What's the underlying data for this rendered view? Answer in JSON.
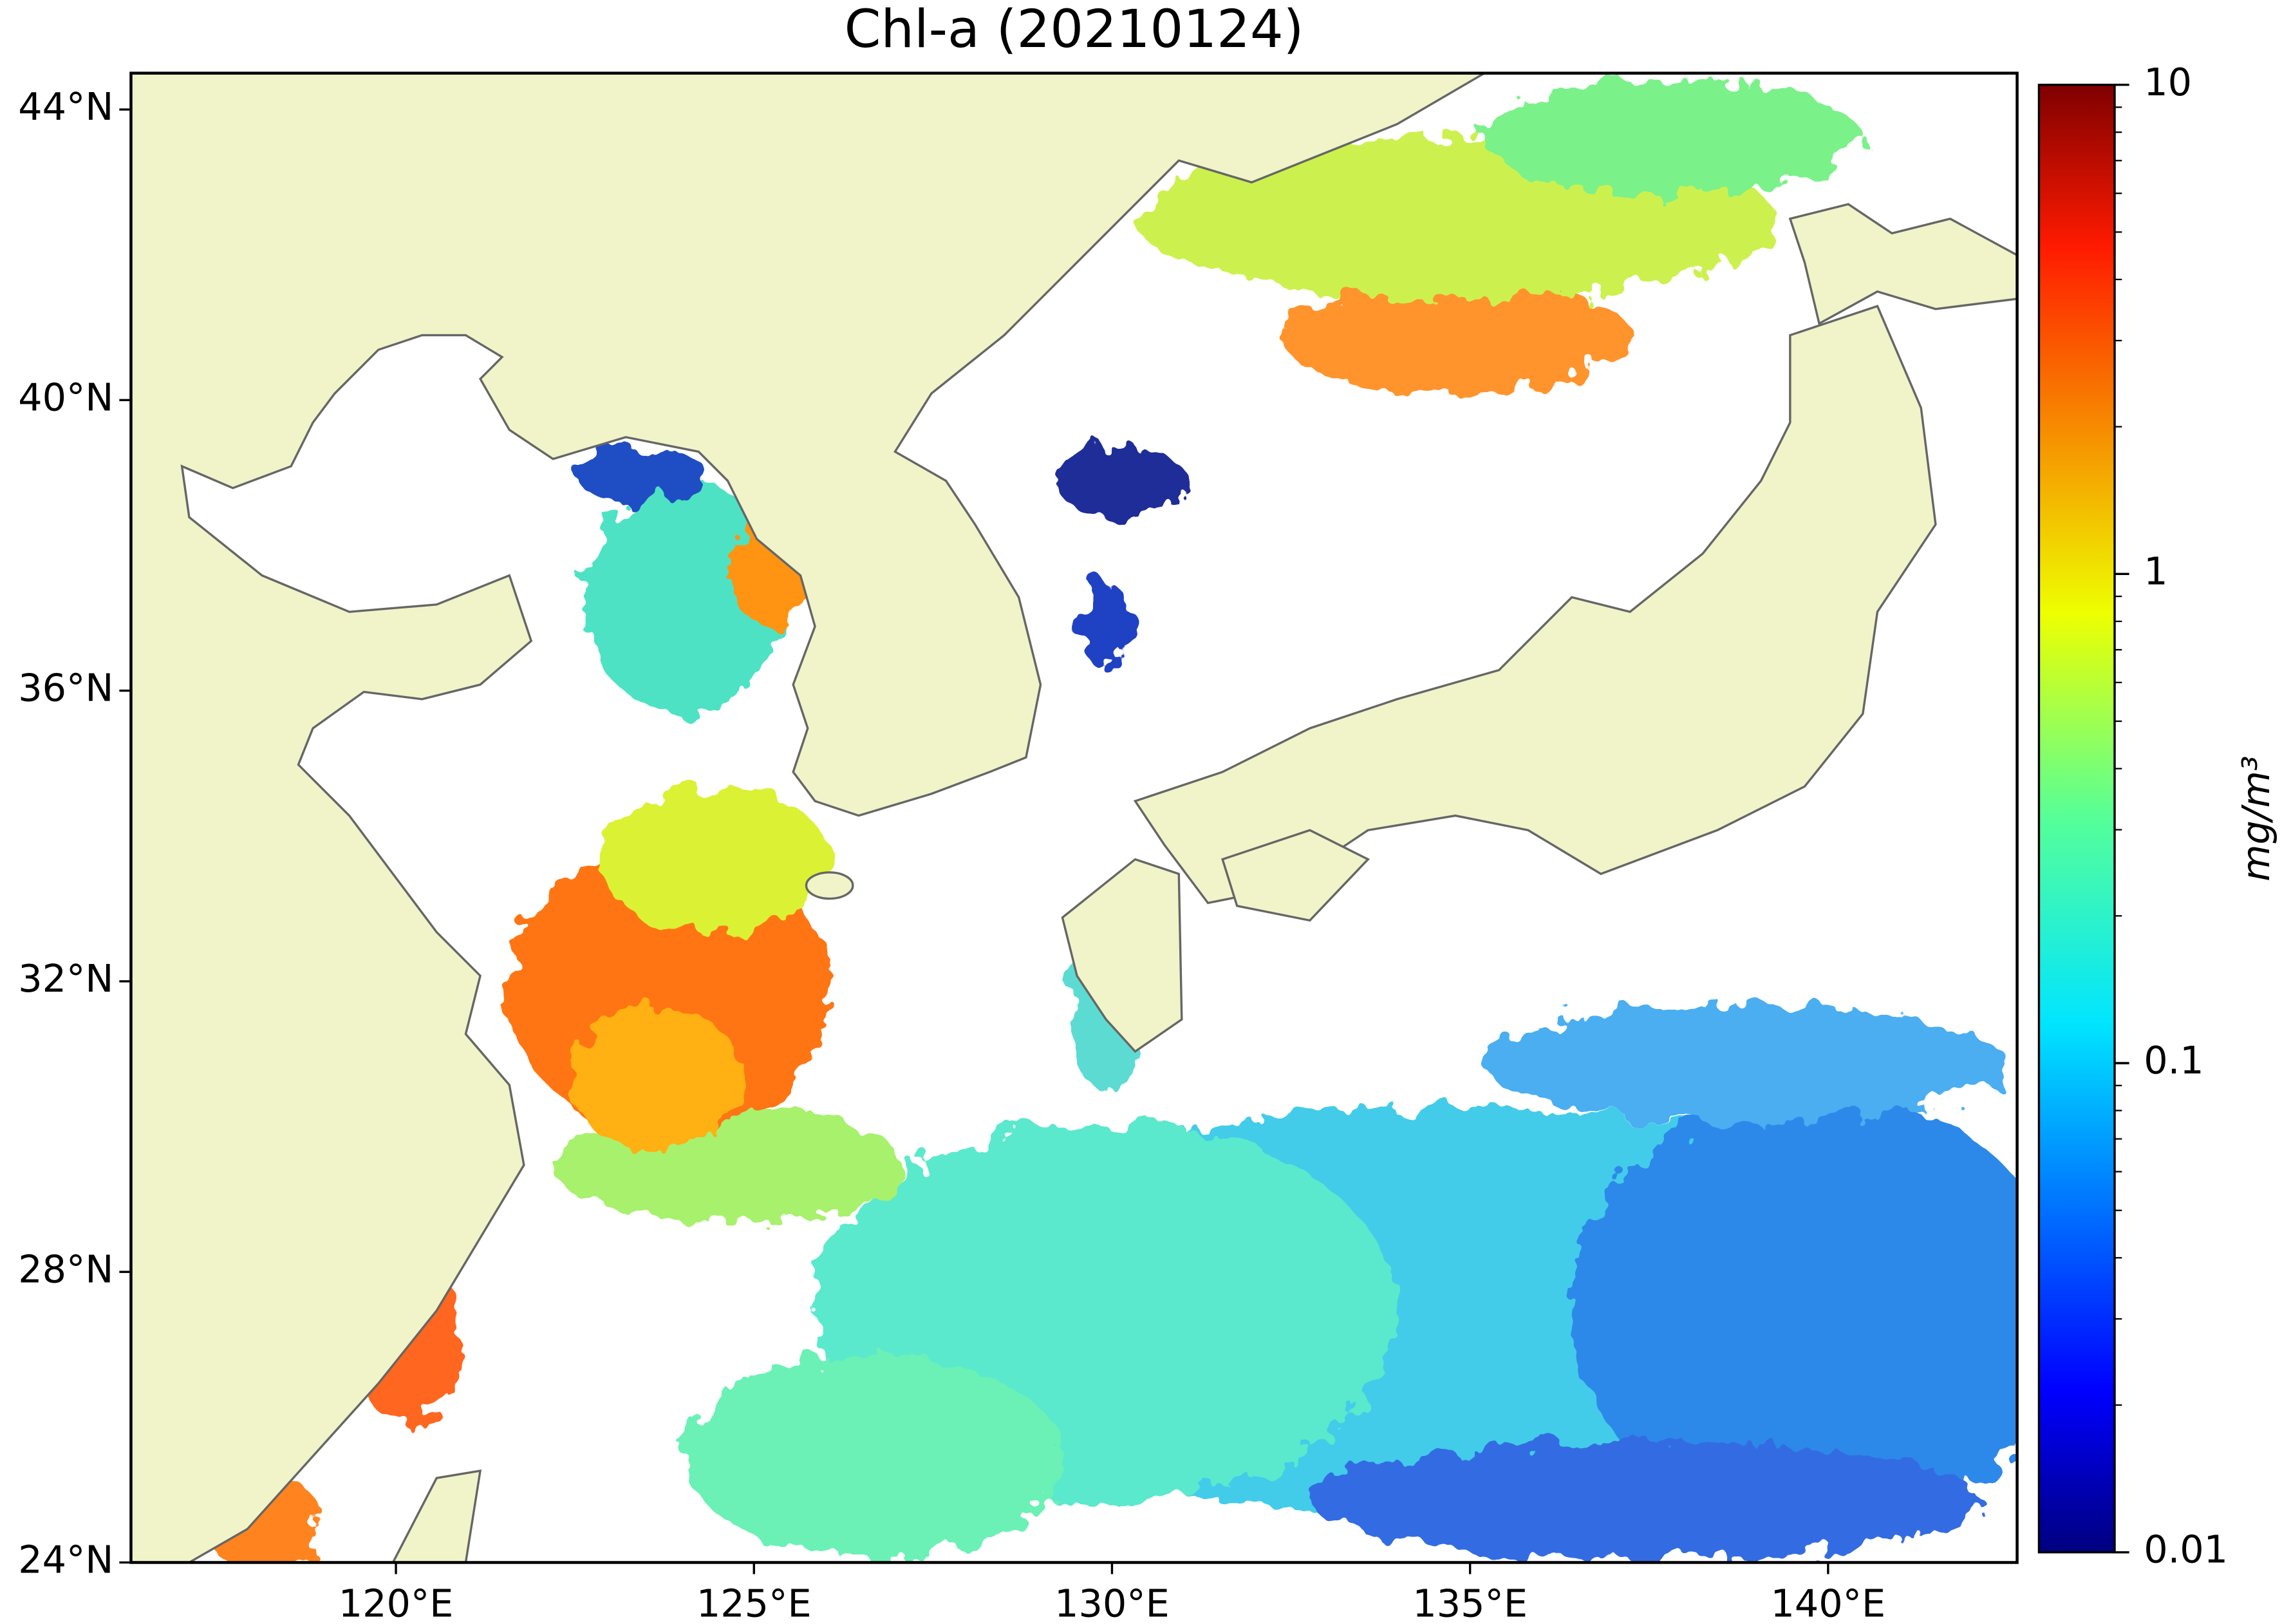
{
  "map": {
    "title": "Chl-a (20210124)",
    "lonlim": [
      116.3,
      142.64
    ],
    "latlim": [
      24,
      44.5
    ],
    "lon_ticks": [
      {
        "value": 120,
        "label": "120°E"
      },
      {
        "value": 125,
        "label": "125°E"
      },
      {
        "value": 130,
        "label": "130°E"
      },
      {
        "value": 135,
        "label": "135°E"
      },
      {
        "value": 140,
        "label": "140°E"
      }
    ],
    "lat_ticks": [
      {
        "value": 24,
        "label": "24°N"
      },
      {
        "value": 28,
        "label": "28°N"
      },
      {
        "value": 32,
        "label": "32°N"
      },
      {
        "value": 36,
        "label": "36°N"
      },
      {
        "value": 40,
        "label": "40°N"
      },
      {
        "value": 44,
        "label": "44°N"
      }
    ],
    "colorbar": {
      "label": "mg/m³",
      "scale": "log",
      "lim": [
        0.01,
        10
      ],
      "ticks": [
        0.01,
        0.1,
        1,
        10
      ]
    }
  }
}
